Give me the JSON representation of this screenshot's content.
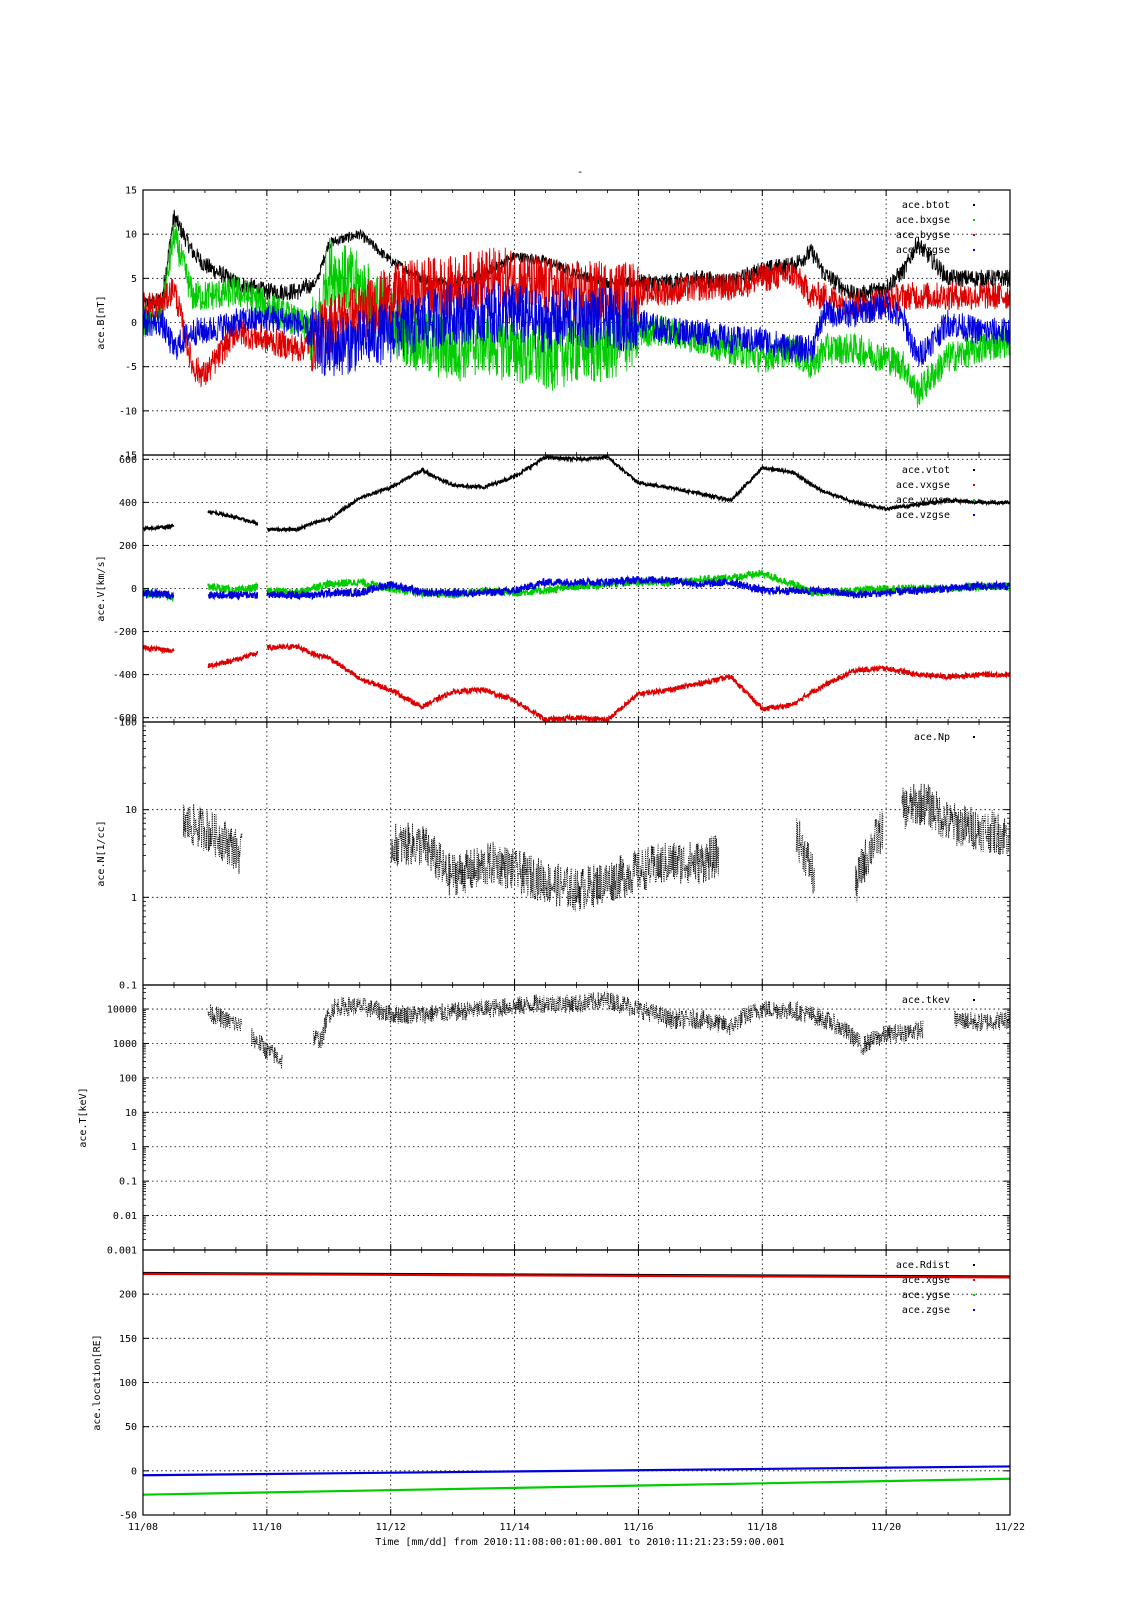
{
  "title": "-",
  "xlabel": "Time [mm/dd]  from 2010:11:08:00:01:00.001  to  2010:11:21:23:59:00.001",
  "x_ticks": [
    "11/08",
    "11/10",
    "11/12",
    "11/14",
    "11/16",
    "11/18",
    "11/20",
    "11/22"
  ],
  "colors": {
    "black": "#000000",
    "red": "#dd0000",
    "green": "#00cc00",
    "blue": "#0000dd"
  },
  "chart_data": [
    {
      "type": "line",
      "ylabel": "ace.B[nT]",
      "ylim": [
        -15,
        15
      ],
      "y_scale": "linear",
      "y_ticks": [
        "15",
        "10",
        "5",
        "0",
        "-5",
        "-10",
        "-15"
      ],
      "grid": true,
      "legend_position": "top-right",
      "x_days": [
        0.0,
        0.3,
        0.5,
        0.8,
        1.0,
        1.5,
        2.0,
        2.5,
        2.8,
        3.0,
        3.5,
        4.0,
        4.5,
        5.0,
        5.5,
        6.0,
        6.5,
        7.0,
        7.5,
        8.0,
        8.5,
        9.0,
        9.5,
        10.0,
        10.5,
        10.8,
        11.0,
        11.5,
        12.0,
        12.3,
        12.5,
        13.0,
        13.5,
        14.0
      ],
      "series": [
        {
          "name": "ace.btot",
          "color": "#000000",
          "values": [
            2,
            2.5,
            12,
            8,
            6.5,
            4.5,
            3.5,
            3.5,
            4.5,
            9,
            10,
            7,
            5,
            4.5,
            5.5,
            7.5,
            7,
            5.5,
            4.5,
            4.5,
            4.5,
            5,
            4.5,
            6,
            6.5,
            8,
            5.5,
            3,
            4,
            6,
            9,
            5,
            5,
            5
          ]
        },
        {
          "name": "ace.bxgse",
          "color": "#00cc00",
          "values": [
            0,
            1,
            10,
            3,
            3,
            3.5,
            2,
            0,
            -1,
            6,
            4,
            0,
            -2,
            -3,
            -2,
            -3,
            -4,
            -3,
            -3,
            -1,
            -1,
            -2,
            -3,
            -4,
            -3,
            -5,
            -3,
            -3,
            -4,
            -5,
            -8,
            -4,
            -3,
            -2
          ]
        },
        {
          "name": "ace.bygse",
          "color": "#dd0000",
          "values": [
            2,
            2,
            4,
            -5,
            -6,
            -1,
            -2,
            -3,
            -2,
            0,
            1,
            3,
            4,
            4,
            5,
            5,
            4,
            3.5,
            3.5,
            3.5,
            3.5,
            4,
            4,
            5,
            5.5,
            3,
            3,
            2,
            2.5,
            3,
            3,
            3,
            3,
            3
          ]
        },
        {
          "name": "ace.bzgse",
          "color": "#0000dd",
          "values": [
            0,
            0,
            -3,
            -1,
            -1,
            0,
            0.5,
            0,
            -2,
            -3,
            -2,
            -1,
            0,
            1,
            1,
            1,
            0,
            0.5,
            0.5,
            0,
            -1,
            -1,
            -2,
            -2,
            -3,
            -3,
            1,
            1,
            2,
            0,
            -4,
            0,
            -1,
            -1
          ]
        }
      ]
    },
    {
      "type": "line",
      "ylabel": "ace.V[km/s]",
      "ylim": [
        -620,
        620
      ],
      "y_scale": "linear",
      "y_ticks": [
        "600",
        "400",
        "200",
        "0",
        "-200",
        "-400",
        "-600"
      ],
      "grid": true,
      "legend_position": "top-right",
      "segments": [
        [
          0.0,
          0.5
        ],
        [
          1.05,
          1.85
        ],
        [
          2.0,
          14.0
        ]
      ],
      "x_days": [
        0.0,
        0.5,
        1.05,
        1.5,
        1.85,
        2.0,
        2.5,
        2.8,
        3.0,
        3.5,
        4.0,
        4.5,
        5.0,
        5.5,
        6.0,
        6.5,
        7.0,
        7.5,
        8.0,
        8.5,
        9.0,
        9.5,
        10.0,
        10.5,
        10.8,
        11.0,
        11.5,
        12.0,
        12.5,
        13.0,
        13.5,
        14.0
      ],
      "series": [
        {
          "name": "ace.vtot",
          "color": "#000000",
          "values": [
            275,
            290,
            360,
            330,
            300,
            275,
            275,
            310,
            320,
            420,
            470,
            550,
            480,
            470,
            520,
            610,
            600,
            610,
            490,
            470,
            440,
            410,
            560,
            540,
            480,
            450,
            400,
            370,
            390,
            410,
            400,
            400
          ]
        },
        {
          "name": "ace.vxgse",
          "color": "#dd0000",
          "values": [
            -275,
            -290,
            -360,
            -330,
            -300,
            -275,
            -270,
            -310,
            -320,
            -420,
            -470,
            -550,
            -480,
            -470,
            -520,
            -610,
            -600,
            -610,
            -490,
            -470,
            -440,
            -410,
            -560,
            -540,
            -480,
            -450,
            -380,
            -370,
            -400,
            -410,
            -400,
            -400
          ]
        },
        {
          "name": "ace.vygse",
          "color": "#00cc00",
          "values": [
            -20,
            -40,
            10,
            -10,
            5,
            -10,
            -20,
            10,
            20,
            30,
            0,
            -20,
            -30,
            -10,
            -20,
            -10,
            10,
            20,
            30,
            30,
            40,
            50,
            70,
            20,
            -20,
            -20,
            -10,
            0,
            0,
            0,
            10,
            10
          ]
        },
        {
          "name": "ace.vzgse",
          "color": "#0000dd",
          "values": [
            -20,
            -30,
            -30,
            -30,
            -30,
            -30,
            -30,
            -30,
            -20,
            -20,
            20,
            -20,
            -20,
            -20,
            -10,
            30,
            30,
            30,
            40,
            40,
            20,
            30,
            -10,
            -10,
            -10,
            -10,
            -30,
            -20,
            -10,
            0,
            10,
            10
          ]
        }
      ]
    },
    {
      "type": "scatter",
      "ylabel": "ace.N[1/cc]",
      "ylim": [
        0.1,
        100
      ],
      "y_scale": "log",
      "y_ticks": [
        "100",
        "10",
        "1",
        "0.1"
      ],
      "grid": true,
      "legend_position": "top-right",
      "segments": [
        [
          0.65,
          1.6
        ],
        [
          4.0,
          9.3
        ],
        [
          10.55,
          10.85
        ],
        [
          11.5,
          11.95
        ],
        [
          12.25,
          14.0
        ]
      ],
      "x_days": [
        0.65,
        1.0,
        1.3,
        1.6,
        4.0,
        4.5,
        4.9,
        5.3,
        5.7,
        6.0,
        6.5,
        7.0,
        7.5,
        8.0,
        8.5,
        9.0,
        9.3,
        10.55,
        10.7,
        10.85,
        11.5,
        11.7,
        11.95,
        12.25,
        12.6,
        13.0,
        13.5,
        14.0
      ],
      "series": [
        {
          "name": "ace.Np",
          "color": "#000000",
          "values": [
            7,
            6,
            4.5,
            3,
            4,
            4,
            1.8,
            2,
            2.5,
            2,
            1.5,
            1.2,
            1.5,
            2,
            2.5,
            2.5,
            3,
            5,
            3,
            1.5,
            1.2,
            3,
            6,
            10,
            12,
            7,
            6,
            5
          ]
        }
      ]
    },
    {
      "type": "scatter",
      "ylabel": "ace.T[keV]",
      "ylim": [
        0.001,
        50000
      ],
      "y_scale": "log",
      "y_ticks": [
        "10000",
        "1000",
        "100",
        "10",
        "1",
        "0.1",
        "0.01",
        "0.001"
      ],
      "grid": true,
      "legend_position": "top-right",
      "segments": [
        [
          1.05,
          1.6
        ],
        [
          1.75,
          2.25
        ],
        [
          2.75,
          3.1
        ],
        [
          3.1,
          11.6
        ],
        [
          11.6,
          12.6
        ],
        [
          13.1,
          14.0
        ]
      ],
      "x_days": [
        1.05,
        1.3,
        1.6,
        1.75,
        2.0,
        2.25,
        2.75,
        2.9,
        3.1,
        3.5,
        4.0,
        4.5,
        5.0,
        5.5,
        6.0,
        6.5,
        7.0,
        7.5,
        8.0,
        8.5,
        9.0,
        9.5,
        10.0,
        10.5,
        11.0,
        11.3,
        11.6,
        12.0,
        12.6,
        13.1,
        13.5,
        14.0
      ],
      "series": [
        {
          "name": "ace.tkev",
          "color": "#000000",
          "values": [
            8000,
            5000,
            3000,
            1500,
            600,
            300,
            1500,
            1200,
            12000,
            12000,
            7000,
            7000,
            8000,
            10000,
            12000,
            15000,
            14000,
            18000,
            10000,
            5000,
            5000,
            3000,
            10000,
            9000,
            5000,
            2500,
            800,
            1800,
            2500,
            5000,
            4000,
            5000
          ]
        }
      ]
    },
    {
      "type": "line",
      "ylabel": "ace.location[RE]",
      "ylim": [
        -50,
        250
      ],
      "y_scale": "linear",
      "y_ticks": [
        "200",
        "150",
        "100",
        "50",
        "0",
        "-50"
      ],
      "grid": true,
      "legend_position": "top-right",
      "x_days": [
        0.0,
        14.0
      ],
      "series": [
        {
          "name": "ace.Rdist",
          "color": "#000000",
          "values": [
            224,
            220
          ]
        },
        {
          "name": "ace.xgse",
          "color": "#dd0000",
          "values": [
            223,
            219
          ]
        },
        {
          "name": "ace.ygse",
          "color": "#00cc00",
          "values": [
            -27,
            -9
          ]
        },
        {
          "name": "ace.zgse",
          "color": "#0000dd",
          "values": [
            -5,
            5
          ]
        }
      ]
    }
  ]
}
